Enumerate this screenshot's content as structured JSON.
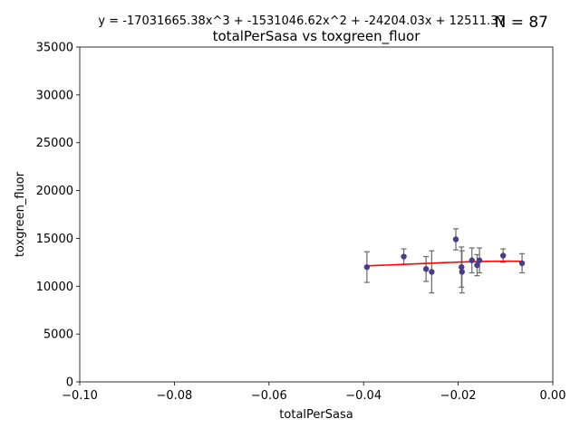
{
  "chart_data": {
    "type": "scatter",
    "equation": "y = -17031665.38x^3 + -1531046.62x^2 + -24204.03x + 12511.37",
    "n_label": "N = 87",
    "title": "totalPerSasa vs toxgreen_fluor",
    "xlabel": "totalPerSasa",
    "ylabel": "toxgreen_fluor",
    "xlim": [
      -0.1,
      0.0
    ],
    "ylim": [
      0,
      35000
    ],
    "x_ticks": [
      -0.1,
      -0.08,
      -0.06,
      -0.04,
      -0.02,
      0.0
    ],
    "x_tick_labels": [
      "−0.10",
      "−0.08",
      "−0.06",
      "−0.04",
      "−0.02",
      "0.00"
    ],
    "y_ticks": [
      0,
      5000,
      10000,
      15000,
      20000,
      25000,
      30000,
      35000
    ],
    "y_tick_labels": [
      "0",
      "5000",
      "10000",
      "15000",
      "20000",
      "25000",
      "30000",
      "35000"
    ],
    "grid": false,
    "points": [
      {
        "x": -0.0393,
        "y": 12000,
        "err": 1600
      },
      {
        "x": -0.0315,
        "y": 13100,
        "err": 800
      },
      {
        "x": -0.0268,
        "y": 11800,
        "err": 1300
      },
      {
        "x": -0.0256,
        "y": 11500,
        "err": 2200
      },
      {
        "x": -0.0205,
        "y": 14900,
        "err": 1100
      },
      {
        "x": -0.0193,
        "y": 12000,
        "err": 2100
      },
      {
        "x": -0.0192,
        "y": 11500,
        "err": 2200
      },
      {
        "x": -0.0171,
        "y": 12700,
        "err": 1300
      },
      {
        "x": -0.016,
        "y": 12200,
        "err": 1100
      },
      {
        "x": -0.0155,
        "y": 12700,
        "err": 1300
      },
      {
        "x": -0.0105,
        "y": 13200,
        "err": 700
      },
      {
        "x": -0.0065,
        "y": 12400,
        "err": 1000
      }
    ],
    "fit": {
      "coefficients": [
        -17031665.38,
        -1531046.62,
        -24204.03,
        12511.37
      ],
      "x_range": [
        -0.0393,
        -0.0065
      ]
    },
    "colors": {
      "points": "#483d8b",
      "errorbars": "#696969",
      "fit": "#ff0000",
      "axes": "#000000"
    }
  }
}
